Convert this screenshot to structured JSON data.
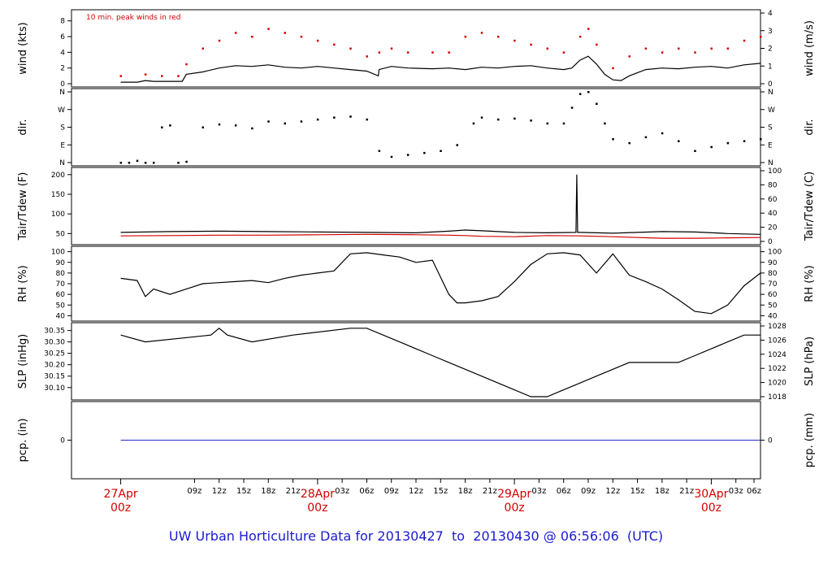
{
  "colors": {
    "primary": "#000000",
    "accent": "#d40000",
    "precip": "#2a2ad4",
    "title": "#1a1ad0"
  },
  "title": {
    "prefix": "UW Urban Horticulture Data for ",
    "start": "20130427",
    "to": "to",
    "end": "20130430",
    "at": "@ 06:56:06",
    "tz": "(UTC)"
  },
  "chart_data": [
    {
      "type": "line",
      "id": "wind",
      "ylabel_left": "wind (kts)",
      "ylabel_right": "wind (m/s)",
      "annotation": "10 min. peak winds in red",
      "yticks_left": [
        0,
        2,
        4,
        6,
        8
      ],
      "yticks_right": [
        0,
        1,
        2,
        3,
        4
      ],
      "ylim": [
        0,
        9
      ],
      "series": [
        {
          "color": "#000000",
          "x": [
            0,
            2,
            3,
            4,
            6,
            7.5,
            8,
            10,
            12,
            14,
            16,
            18,
            20,
            22,
            24,
            26,
            28,
            30,
            31.4,
            31.5,
            33,
            35,
            38,
            40,
            42,
            44,
            46,
            48,
            50,
            52,
            54,
            55,
            56,
            57,
            58,
            59,
            60,
            61,
            62,
            64,
            66,
            68,
            70,
            72,
            74,
            76,
            78
          ],
          "values": [
            0.2,
            0.2,
            0.4,
            0.3,
            0.3,
            0.3,
            1.2,
            1.5,
            2.0,
            2.3,
            2.2,
            2.4,
            2.1,
            2.0,
            2.2,
            2.0,
            1.8,
            1.6,
            1.0,
            1.8,
            2.2,
            2.0,
            1.9,
            2.0,
            1.8,
            2.1,
            2.0,
            2.2,
            2.3,
            2.0,
            1.8,
            2.0,
            3.0,
            3.5,
            2.5,
            1.2,
            0.5,
            0.4,
            1.0,
            1.8,
            2.0,
            1.9,
            2.1,
            2.2,
            2.0,
            2.4,
            2.6
          ]
        },
        {
          "color": "#d40000",
          "x": [
            0,
            3,
            5,
            7,
            8,
            10,
            12,
            14,
            16,
            18,
            20,
            22,
            24,
            26,
            28,
            30,
            31.5,
            33,
            35,
            38,
            40,
            42,
            44,
            46,
            48,
            50,
            52,
            54,
            56,
            57,
            58,
            60,
            62,
            64,
            66,
            68,
            70,
            72,
            74,
            76,
            78
          ],
          "values": [
            1.0,
            1.2,
            1.0,
            1.0,
            2.5,
            4.5,
            5.5,
            6.5,
            6.0,
            7.0,
            6.5,
            6.0,
            5.5,
            5.0,
            4.5,
            3.5,
            4.0,
            4.5,
            4.0,
            4.0,
            4.0,
            6.0,
            6.5,
            6.0,
            5.5,
            5.0,
            4.5,
            4.0,
            6.0,
            7.0,
            5.0,
            2.0,
            3.5,
            4.5,
            4.0,
            4.5,
            4.0,
            4.5,
            4.5,
            5.5,
            6.0
          ]
        }
      ]
    },
    {
      "type": "scatter",
      "id": "dir",
      "ylabel_left": "dir.",
      "ylabel_right": "dir.",
      "yticks_left": [
        "N",
        "E",
        "S",
        "W",
        "N"
      ],
      "ylim": [
        0,
        360
      ],
      "series": [
        {
          "color": "#000000",
          "x": [
            0,
            1,
            2,
            3,
            4,
            5,
            6,
            7,
            8,
            10,
            12,
            14,
            16,
            18,
            20,
            22,
            24,
            26,
            28,
            30,
            31.5,
            33,
            35,
            37,
            39,
            41,
            43,
            44,
            46,
            48,
            50,
            52,
            54,
            55,
            56,
            57,
            58,
            59,
            60,
            62,
            64,
            66,
            68,
            70,
            72,
            74,
            76,
            78
          ],
          "values": [
            0,
            0,
            10,
            0,
            0,
            180,
            190,
            0,
            5,
            180,
            195,
            190,
            175,
            210,
            200,
            210,
            220,
            230,
            235,
            220,
            60,
            30,
            40,
            50,
            60,
            90,
            200,
            230,
            220,
            225,
            215,
            200,
            200,
            280,
            350,
            360,
            300,
            200,
            120,
            100,
            130,
            150,
            110,
            60,
            80,
            100,
            110,
            120
          ]
        }
      ]
    },
    {
      "type": "line",
      "id": "temp",
      "ylabel_left": "Tair/Tdew (F)",
      "ylabel_right": "Tair/Tdew (C)",
      "yticks_left": [
        50,
        100,
        150,
        200
      ],
      "yticks_right": [
        0,
        20,
        40,
        60,
        80,
        100
      ],
      "ylim": [
        30,
        210
      ],
      "series": [
        {
          "color": "#000000",
          "x": [
            0,
            6,
            12,
            18,
            24,
            30,
            36,
            40,
            42,
            44,
            48,
            52,
            55.5,
            55.6,
            55.7,
            56,
            60,
            66,
            70,
            74,
            78
          ],
          "values": [
            53,
            55,
            56,
            55,
            54,
            53,
            52,
            56,
            59,
            57,
            53,
            52,
            53,
            200,
            53,
            53,
            51,
            55,
            54,
            50,
            48
          ]
        },
        {
          "color": "#d40000",
          "x": [
            0,
            6,
            12,
            18,
            24,
            30,
            36,
            40,
            42,
            44,
            48,
            52,
            56,
            60,
            66,
            70,
            74,
            78
          ],
          "values": [
            44,
            45,
            46,
            46,
            47,
            48,
            47,
            46,
            45,
            43,
            42,
            45,
            44,
            42,
            38,
            38,
            39,
            40
          ]
        }
      ]
    },
    {
      "type": "line",
      "id": "rh",
      "ylabel_left": "RH (%)",
      "ylabel_right": "RH (%)",
      "yticks_left": [
        40,
        50,
        60,
        70,
        80,
        90,
        100
      ],
      "ylim": [
        38,
        102
      ],
      "series": [
        {
          "color": "#000000",
          "x": [
            0,
            2,
            3,
            4,
            6,
            8,
            10,
            12,
            14,
            16,
            18,
            20,
            22,
            24,
            26,
            28,
            30,
            32,
            34,
            36,
            38,
            40,
            41,
            42,
            44,
            46,
            48,
            50,
            52,
            54,
            56,
            58,
            60,
            62,
            64,
            66,
            68,
            70,
            72,
            74,
            76,
            78
          ],
          "values": [
            75,
            73,
            58,
            65,
            60,
            65,
            70,
            71,
            72,
            73,
            71,
            75,
            78,
            80,
            82,
            98,
            99,
            97,
            95,
            90,
            92,
            60,
            52,
            52,
            54,
            58,
            72,
            88,
            98,
            99,
            97,
            80,
            98,
            78,
            72,
            65,
            55,
            44,
            42,
            50,
            68,
            80
          ]
        }
      ]
    },
    {
      "type": "line",
      "id": "slp",
      "ylabel_left": "SLP (inHg)",
      "ylabel_right": "SLP (hPa)",
      "yticks_left": [
        "30.10",
        "30.15",
        "30.20",
        "30.25",
        "30.30",
        "30.35"
      ],
      "yticks_right": [
        1018,
        1020,
        1022,
        1024,
        1026,
        1028
      ],
      "ylim": [
        30.06,
        30.37
      ],
      "series": [
        {
          "color": "#000000",
          "x": [
            0,
            3,
            11,
            12,
            13,
            16,
            21,
            28,
            30,
            34,
            36,
            38,
            40,
            42,
            46,
            48,
            50,
            52,
            54,
            56,
            58,
            60,
            62,
            64,
            66,
            68,
            70,
            72,
            74,
            76,
            78
          ],
          "values": [
            30.33,
            30.3,
            30.33,
            30.36,
            30.33,
            30.3,
            30.33,
            30.36,
            30.36,
            30.3,
            30.27,
            30.24,
            30.21,
            30.18,
            30.12,
            30.09,
            30.06,
            30.06,
            30.09,
            30.12,
            30.15,
            30.18,
            30.21,
            30.21,
            30.21,
            30.21,
            30.24,
            30.27,
            30.3,
            30.33,
            30.33
          ]
        }
      ]
    },
    {
      "type": "line",
      "id": "pcp",
      "ylabel_left": "pcp. (in)",
      "ylabel_right": "pcp. (mm)",
      "yticks_left": [
        0
      ],
      "yticks_right": [
        0
      ],
      "ylim": [
        -1,
        1
      ],
      "series": [
        {
          "color": "#2a2ad4",
          "x": [
            0,
            78
          ],
          "values": [
            0,
            0
          ]
        }
      ]
    }
  ],
  "x_axis": {
    "hour_ticks": [
      "09z",
      "12z",
      "15z",
      "18z",
      "21z",
      "03z",
      "06z",
      "09z",
      "12z",
      "15z",
      "18z",
      "21z",
      "03z",
      "06z",
      "09z",
      "12z",
      "15z",
      "18z",
      "21z",
      "03z",
      "06z"
    ],
    "date_labels": [
      {
        "date": "27Apr",
        "hour": "00z"
      },
      {
        "date": "28Apr",
        "hour": "00z"
      },
      {
        "date": "29Apr",
        "hour": "00z"
      },
      {
        "date": "30Apr",
        "hour": "00z"
      }
    ]
  }
}
